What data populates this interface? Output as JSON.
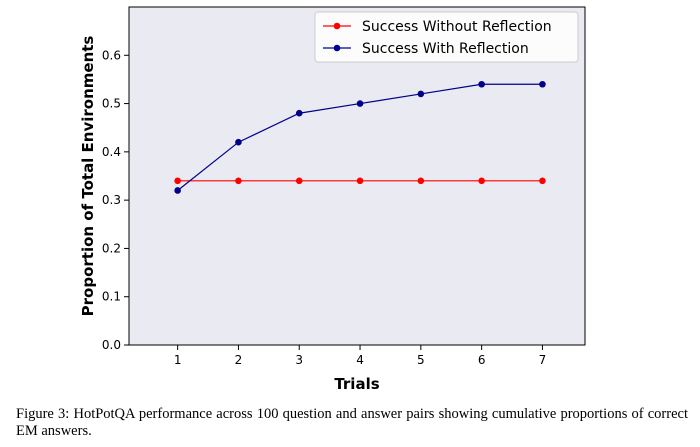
{
  "chart_data": {
    "type": "line",
    "x": [
      1,
      2,
      3,
      4,
      5,
      6,
      7
    ],
    "series": [
      {
        "name": "Success Without Reflection",
        "color": "#ff0000",
        "values": [
          0.34,
          0.34,
          0.34,
          0.34,
          0.34,
          0.34,
          0.34
        ]
      },
      {
        "name": "Success With Reflection",
        "color": "#00008b",
        "values": [
          0.32,
          0.42,
          0.48,
          0.5,
          0.52,
          0.54,
          0.54
        ]
      }
    ],
    "xlabel": "Trials",
    "ylabel": "Proportion of Total Environments",
    "xticks": [
      "1",
      "2",
      "3",
      "4",
      "5",
      "6",
      "7"
    ],
    "yticks": [
      "0.0",
      "0.1",
      "0.2",
      "0.3",
      "0.4",
      "0.5",
      "0.6"
    ],
    "xlim": [
      0.2,
      7.7
    ],
    "ylim": [
      0.0,
      0.7
    ],
    "legend_position": "top-right",
    "plot_background": "#eaeaf2"
  },
  "caption": "Figure 3: HotPotQA performance across 100 question and answer pairs showing cumulative proportions of correct EM answers."
}
